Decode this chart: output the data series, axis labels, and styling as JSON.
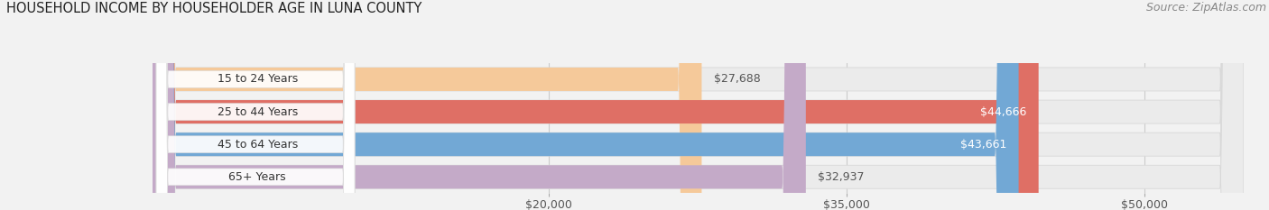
{
  "title": "HOUSEHOLD INCOME BY HOUSEHOLDER AGE IN LUNA COUNTY",
  "source": "Source: ZipAtlas.com",
  "categories": [
    "15 to 24 Years",
    "25 to 44 Years",
    "45 to 64 Years",
    "65+ Years"
  ],
  "values": [
    27688,
    44666,
    43661,
    32937
  ],
  "bar_colors": [
    "#f5c99a",
    "#df6f65",
    "#72a8d5",
    "#c4aac8"
  ],
  "label_colors": [
    "#444444",
    "#ffffff",
    "#ffffff",
    "#444444"
  ],
  "xmin": 0,
  "xmax": 55000,
  "xticks": [
    20000,
    35000,
    50000
  ],
  "xtick_labels": [
    "$20,000",
    "$35,000",
    "$50,000"
  ],
  "background_color": "#f2f2f2",
  "bar_bg_color": "#ebebeb",
  "bar_bg_edge_color": "#d8d8d8",
  "title_fontsize": 10.5,
  "source_fontsize": 9,
  "label_fontsize": 9,
  "tick_fontsize": 9
}
